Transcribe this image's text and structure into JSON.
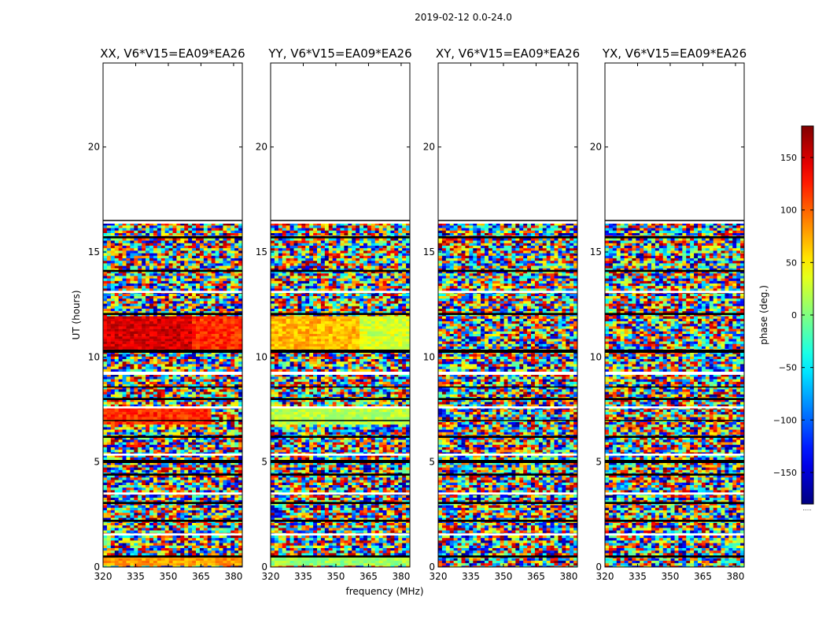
{
  "figure_title": "2019-02-12 0.0-24.0",
  "chart_data": {
    "type": "heatmap",
    "suptitle": "2019-02-12 0.0-24.0",
    "xlabel": "frequency (MHz)",
    "ylabel": "UT (hours)",
    "xlim": [
      320,
      384
    ],
    "ylim": [
      0,
      24
    ],
    "xticks": [
      320,
      335,
      350,
      365,
      380
    ],
    "yticks": [
      0,
      5,
      10,
      15,
      20
    ],
    "data_extent_hours": [
      0,
      16.5
    ],
    "panels": [
      {
        "title": "XX, V6*V15=EA09*EA26",
        "pol": "XX",
        "coherent_blocks": [
          {
            "t0": 10.3,
            "t1": 11.9,
            "f0": 320,
            "f1": 360,
            "phase": 150
          },
          {
            "t0": 10.3,
            "t1": 11.9,
            "f0": 360,
            "f1": 384,
            "phase": 120
          },
          {
            "t0": 6.8,
            "t1": 7.6,
            "f0": 320,
            "f1": 370,
            "phase": 120
          },
          {
            "t0": 0.0,
            "t1": 0.5,
            "f0": 320,
            "f1": 384,
            "phase": 80
          }
        ]
      },
      {
        "title": "YY, V6*V15=EA09*EA26",
        "pol": "YY",
        "coherent_blocks": [
          {
            "t0": 10.3,
            "t1": 11.9,
            "f0": 320,
            "f1": 360,
            "phase": 70
          },
          {
            "t0": 10.3,
            "t1": 11.9,
            "f0": 360,
            "f1": 384,
            "phase": 30
          },
          {
            "t0": 6.8,
            "t1": 7.6,
            "f0": 320,
            "f1": 384,
            "phase": 20
          },
          {
            "t0": 0.0,
            "t1": 0.5,
            "f0": 320,
            "f1": 384,
            "phase": 10
          }
        ]
      },
      {
        "title": "XY, V6*V15=EA09*EA26",
        "pol": "XY",
        "coherent_blocks": []
      },
      {
        "title": "YX, V6*V15=EA09*EA26",
        "pol": "YX",
        "coherent_blocks": []
      }
    ],
    "gap_rows_hours": [
      [
        16.35,
        16.5
      ],
      [
        15.65,
        15.75
      ],
      [
        14.05,
        14.15
      ],
      [
        13.05,
        13.15
      ],
      [
        12.0,
        12.1
      ],
      [
        10.2,
        10.35
      ],
      [
        9.15,
        9.3
      ],
      [
        8.55,
        8.6
      ],
      [
        7.95,
        8.05
      ],
      [
        7.55,
        7.65
      ],
      [
        6.95,
        7.0
      ],
      [
        6.15,
        6.25
      ],
      [
        5.3,
        5.4
      ],
      [
        4.95,
        5.1
      ],
      [
        4.35,
        4.45
      ],
      [
        3.45,
        3.55
      ],
      [
        3.0,
        3.1
      ],
      [
        2.15,
        2.25
      ],
      [
        1.5,
        1.6
      ],
      [
        0.45,
        0.55
      ]
    ],
    "colorbar": {
      "label": "phase (deg.)",
      "range": [
        -180,
        180
      ],
      "ticks": [
        150,
        100,
        50,
        0,
        -50,
        -100,
        -150
      ],
      "tick_labels": [
        "150",
        "100",
        "50",
        "0",
        "−50",
        "−100",
        "−150"
      ],
      "colormap": "jet",
      "footer_text": "....."
    }
  }
}
